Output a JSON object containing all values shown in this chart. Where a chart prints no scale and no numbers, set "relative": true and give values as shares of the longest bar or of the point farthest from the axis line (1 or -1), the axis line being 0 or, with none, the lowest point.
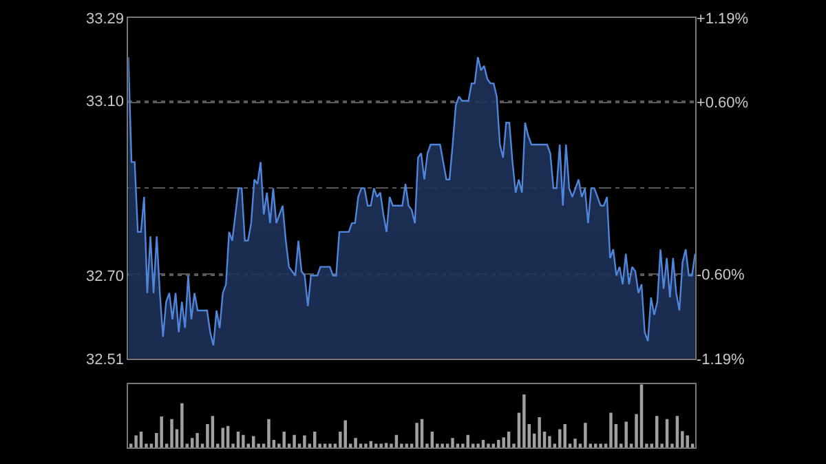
{
  "chart_data": [
    {
      "type": "area",
      "categories": [
        null,
        null,
        null,
        null,
        null,
        null,
        null,
        null,
        null,
        null,
        null,
        null,
        null,
        null,
        null,
        null,
        null,
        null,
        null,
        null,
        null,
        null,
        null,
        null,
        null,
        null,
        null,
        null,
        null,
        null,
        null,
        null,
        null,
        null,
        null,
        null,
        null,
        null,
        null,
        null,
        null,
        null,
        null,
        null,
        null,
        null,
        null,
        null,
        null,
        null,
        null,
        null,
        null,
        null,
        null,
        null,
        null,
        null,
        null,
        null,
        null,
        null,
        null,
        null,
        null,
        null,
        null,
        null,
        null,
        null,
        null,
        null,
        null,
        null,
        null,
        null,
        null,
        null,
        null,
        null,
        null,
        null,
        null,
        null,
        null,
        null,
        null,
        null,
        null,
        null,
        null,
        null,
        null,
        null,
        null,
        null,
        null,
        null,
        null,
        null,
        null,
        null,
        null,
        null,
        null,
        null,
        null,
        null,
        null,
        null,
        null,
        null,
        null,
        null,
        null,
        null,
        null,
        null,
        null,
        null,
        null,
        null,
        null,
        null,
        null,
        null,
        null,
        null,
        null,
        null,
        null,
        null,
        null,
        null,
        null,
        null,
        null,
        null,
        null,
        null,
        null,
        null,
        null,
        null,
        null,
        null,
        null,
        null,
        null,
        null,
        null,
        null,
        null,
        null,
        null,
        null,
        null,
        null,
        null,
        null,
        null,
        null,
        null,
        null,
        null,
        null,
        null,
        null,
        null,
        null,
        null,
        null,
        null,
        null,
        null,
        null,
        null,
        null,
        null,
        null,
        null
      ],
      "series": [
        {
          "color": "#4f86dc",
          "values": [
            33.2,
            32.96,
            32.96,
            32.8,
            32.8,
            32.88,
            32.66,
            32.79,
            32.66,
            32.79,
            32.66,
            32.56,
            32.64,
            32.66,
            32.6,
            32.66,
            32.57,
            32.64,
            32.58,
            32.7,
            32.6,
            32.66,
            32.62,
            32.62,
            32.62,
            32.62,
            32.57,
            32.54,
            32.62,
            32.58,
            32.66,
            32.68,
            32.8,
            32.78,
            32.84,
            32.9,
            32.9,
            32.78,
            32.78,
            32.82,
            32.92,
            32.91,
            32.96,
            32.84,
            32.89,
            32.82,
            32.9,
            32.82,
            32.84,
            32.86,
            32.78,
            32.72,
            32.71,
            32.7,
            32.78,
            32.71,
            32.7,
            32.63,
            32.7,
            32.7,
            32.7,
            32.72,
            32.72,
            32.72,
            32.72,
            32.7,
            32.7,
            32.8,
            32.8,
            32.8,
            32.8,
            32.82,
            32.82,
            32.88,
            32.9,
            32.9,
            32.86,
            32.86,
            32.9,
            32.88,
            32.89,
            32.84,
            32.8,
            32.88,
            32.86,
            32.86,
            32.86,
            32.86,
            32.91,
            32.86,
            32.85,
            32.82,
            32.97,
            32.98,
            32.92,
            32.98,
            33.0,
            33.0,
            33.0,
            33.0,
            32.96,
            32.92,
            32.92,
            33.0,
            33.09,
            33.11,
            33.1,
            33.1,
            33.1,
            33.14,
            33.14,
            33.2,
            33.17,
            33.18,
            33.15,
            33.14,
            33.14,
            33.11,
            33.0,
            32.97,
            33.05,
            33.05,
            32.96,
            32.89,
            32.92,
            32.89,
            33.05,
            33.02,
            33.0,
            33.0,
            33.0,
            33.0,
            33.0,
            33.0,
            32.98,
            32.9,
            32.9,
            33.0,
            32.86,
            33.0,
            32.9,
            32.88,
            32.9,
            32.92,
            32.88,
            32.9,
            32.82,
            32.9,
            32.9,
            32.88,
            32.86,
            32.86,
            32.88,
            32.74,
            32.76,
            32.7,
            32.72,
            32.68,
            32.75,
            32.68,
            32.72,
            32.71,
            32.66,
            32.68,
            32.57,
            32.55,
            32.65,
            32.61,
            32.64,
            32.76,
            32.67,
            32.74,
            32.65,
            32.74,
            32.66,
            32.62,
            32.73,
            32.76,
            32.7,
            32.7,
            32.75
          ]
        }
      ],
      "ylim": [
        32.51,
        33.29
      ],
      "yticks": [
        {
          "value": 32.51,
          "label": "32.51"
        },
        {
          "value": 32.7,
          "label": "32.70"
        },
        {
          "value": 32.9,
          "label": null
        },
        {
          "value": 33.1,
          "label": "33.10"
        },
        {
          "value": 33.29,
          "label": "33.29"
        }
      ],
      "y2lim": [
        -1.19,
        1.19
      ],
      "y2ticks": [
        {
          "value": -1.19,
          "label": "-1.19%"
        },
        {
          "value": -0.6,
          "label": "-0.60%"
        },
        {
          "value": 0,
          "label": null
        },
        {
          "value": 0.6,
          "label": "+0.60%"
        },
        {
          "value": 1.19,
          "label": "+1.19%"
        }
      ],
      "grid": "y",
      "tick_labels": "y"
    },
    {
      "type": "bar",
      "relative": true,
      "color": "#a0a0a0",
      "categories": [
        null,
        null,
        null,
        null,
        null,
        null,
        null,
        null,
        null,
        null,
        null,
        null,
        null,
        null,
        null,
        null,
        null,
        null,
        null,
        null,
        null,
        null,
        null,
        null,
        null,
        null,
        null,
        null,
        null,
        null,
        null,
        null,
        null,
        null,
        null,
        null,
        null,
        null,
        null,
        null,
        null,
        null,
        null,
        null,
        null,
        null,
        null,
        null,
        null,
        null,
        null,
        null,
        null,
        null,
        null,
        null,
        null,
        null,
        null,
        null,
        null,
        null,
        null,
        null,
        null,
        null,
        null,
        null,
        null,
        null,
        null,
        null,
        null,
        null,
        null,
        null,
        null,
        null,
        null,
        null,
        null,
        null,
        null,
        null,
        null,
        null,
        null,
        null,
        null,
        null,
        null,
        null,
        null,
        null,
        null,
        null,
        null,
        null,
        null,
        null,
        null,
        null,
        null,
        null,
        null,
        null,
        null,
        null,
        null,
        null,
        null
      ],
      "values": [
        0.06,
        0.19,
        0.25,
        0.06,
        0.06,
        0.23,
        0.49,
        0.06,
        0.45,
        0.29,
        0.7,
        0.06,
        0.15,
        0.23,
        0.06,
        0.37,
        0.5,
        0.06,
        0.31,
        0.34,
        0.06,
        0.25,
        0.2,
        0.06,
        0.18,
        0.06,
        0.06,
        0.45,
        0.12,
        0.06,
        0.25,
        0.06,
        0.2,
        0.06,
        0.19,
        0.06,
        0.25,
        0.06,
        0.06,
        0.06,
        0.06,
        0.25,
        0.43,
        0.06,
        0.15,
        0.06,
        0.06,
        0.1,
        0.06,
        0.06,
        0.07,
        0.06,
        0.2,
        0.06,
        0.06,
        0.06,
        0.39,
        0.45,
        0.06,
        0.25,
        0.06,
        0.06,
        0.06,
        0.15,
        0.06,
        0.06,
        0.2,
        0.06,
        0.06,
        0.12,
        0.06,
        0.06,
        0.12,
        0.16,
        0.25,
        0.06,
        0.55,
        0.84,
        0.37,
        0.22,
        0.48,
        0.25,
        0.18,
        0.06,
        0.29,
        0.37,
        0.06,
        0.14,
        0.06,
        0.39,
        0.06,
        0.06,
        0.06,
        0.06,
        0.55,
        0.37,
        0.06,
        0.41,
        0.06,
        0.53,
        1,
        0.06,
        0.06,
        0.5,
        0.06,
        0.45,
        0.06,
        0.5,
        0.26,
        0.19,
        0.06
      ],
      "tick_labels": false
    }
  ]
}
